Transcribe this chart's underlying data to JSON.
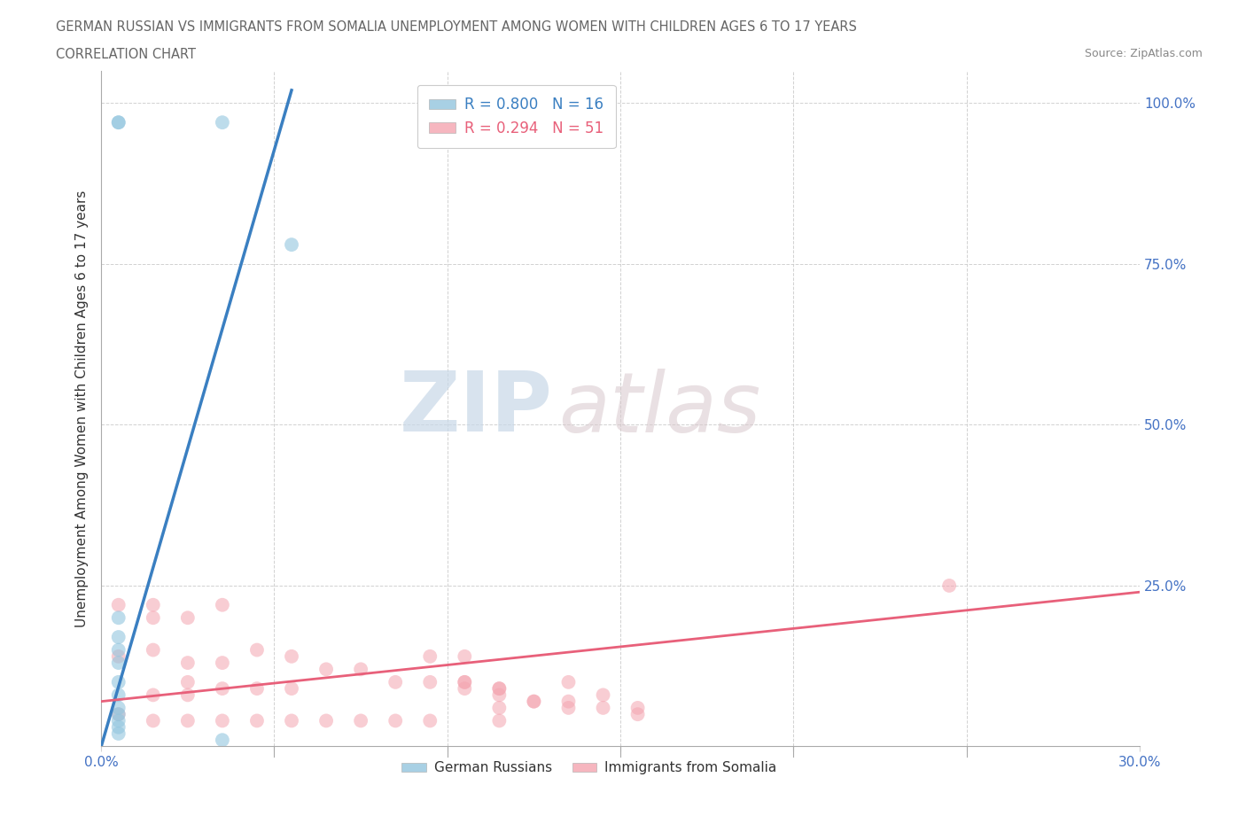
{
  "title_line1": "GERMAN RUSSIAN VS IMMIGRANTS FROM SOMALIA UNEMPLOYMENT AMONG WOMEN WITH CHILDREN AGES 6 TO 17 YEARS",
  "title_line2": "CORRELATION CHART",
  "source": "Source: ZipAtlas.com",
  "ylabel_label": "Unemployment Among Women with Children Ages 6 to 17 years",
  "xlim": [
    0.0,
    0.3
  ],
  "ylim": [
    0.0,
    1.05
  ],
  "x_ticks": [
    0.0,
    0.05,
    0.1,
    0.15,
    0.2,
    0.25,
    0.3
  ],
  "x_tick_labels": [
    "0.0%",
    "",
    "",
    "",
    "",
    "",
    "30.0%"
  ],
  "y_ticks": [
    0.0,
    0.25,
    0.5,
    0.75,
    1.0
  ],
  "y_tick_labels": [
    "",
    "25.0%",
    "50.0%",
    "75.0%",
    "100.0%"
  ],
  "german_russian_color": "#92c5de",
  "somalia_color": "#f4a4b0",
  "german_russian_line_color": "#3a7fc1",
  "somalia_line_color": "#e8607a",
  "legend_r_blue": "R = 0.800",
  "legend_n_blue": "N = 16",
  "legend_r_pink": "R = 0.294",
  "legend_n_pink": "N = 51",
  "watermark_zip": "ZIP",
  "watermark_atlas": "atlas",
  "german_russian_x": [
    0.005,
    0.005,
    0.035,
    0.005,
    0.005,
    0.005,
    0.005,
    0.005,
    0.005,
    0.005,
    0.005,
    0.005,
    0.005,
    0.005,
    0.055,
    0.035
  ],
  "german_russian_y": [
    0.97,
    0.97,
    0.97,
    0.2,
    0.17,
    0.15,
    0.13,
    0.1,
    0.08,
    0.06,
    0.05,
    0.04,
    0.03,
    0.02,
    0.78,
    0.01
  ],
  "somalia_x": [
    0.005,
    0.005,
    0.005,
    0.015,
    0.015,
    0.015,
    0.015,
    0.015,
    0.025,
    0.025,
    0.025,
    0.025,
    0.025,
    0.035,
    0.035,
    0.035,
    0.035,
    0.045,
    0.045,
    0.045,
    0.055,
    0.055,
    0.055,
    0.065,
    0.065,
    0.075,
    0.075,
    0.085,
    0.085,
    0.095,
    0.095,
    0.105,
    0.115,
    0.125,
    0.135,
    0.095,
    0.105,
    0.115,
    0.125,
    0.105,
    0.115,
    0.115,
    0.115,
    0.135,
    0.145,
    0.155,
    0.135,
    0.145,
    0.155,
    0.245,
    0.105
  ],
  "somalia_y": [
    0.22,
    0.14,
    0.05,
    0.22,
    0.2,
    0.15,
    0.08,
    0.04,
    0.2,
    0.13,
    0.1,
    0.08,
    0.04,
    0.22,
    0.13,
    0.09,
    0.04,
    0.15,
    0.09,
    0.04,
    0.14,
    0.09,
    0.04,
    0.12,
    0.04,
    0.12,
    0.04,
    0.1,
    0.04,
    0.1,
    0.04,
    0.09,
    0.08,
    0.07,
    0.06,
    0.14,
    0.1,
    0.09,
    0.07,
    0.1,
    0.09,
    0.06,
    0.04,
    0.07,
    0.06,
    0.05,
    0.1,
    0.08,
    0.06,
    0.25,
    0.14
  ],
  "marker_size": 130,
  "gr_line_x0": 0.0,
  "gr_line_x1": 0.055,
  "gr_line_y0": 0.0,
  "gr_line_y1": 1.02,
  "som_line_x0": 0.0,
  "som_line_x1": 0.3,
  "som_line_y0": 0.07,
  "som_line_y1": 0.24
}
